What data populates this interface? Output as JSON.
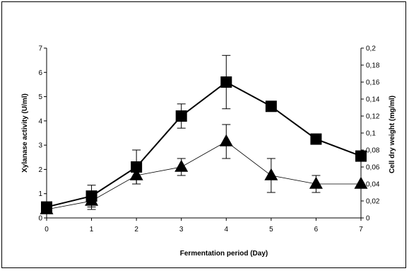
{
  "chart_data": {
    "type": "line",
    "title": "",
    "xlabel": "Fermentation period (Day)",
    "ylabel_left": "Xylanase activity (U/ml)",
    "ylabel_right": "Cell dry weight (mg/ml)",
    "x": [
      0,
      1,
      2,
      3,
      4,
      5,
      6,
      7
    ],
    "xlim": [
      0,
      7
    ],
    "ylim_left": [
      0,
      7
    ],
    "ylim_right": [
      0,
      0.2
    ],
    "x_ticks": [
      "0",
      "1",
      "2",
      "3",
      "4",
      "5",
      "6",
      "7"
    ],
    "y_left_ticks": [
      "0",
      "1",
      "2",
      "3",
      "4",
      "5",
      "6",
      "7"
    ],
    "y_right_ticks": [
      "0",
      "0,02",
      "0,04",
      "0,06",
      "0,08",
      "0,1",
      "0,12",
      "0,14",
      "0,16",
      "0,18",
      "0,2"
    ],
    "grid": false,
    "legend": "none",
    "series": [
      {
        "axis": "left",
        "marker": "square",
        "line": "thick",
        "color": "#000000",
        "values": [
          0.45,
          0.9,
          2.1,
          4.2,
          5.6,
          4.6,
          3.25,
          2.55
        ],
        "error": [
          0,
          0.45,
          0.7,
          0.5,
          1.1,
          0,
          0.2,
          0
        ]
      },
      {
        "axis": "right",
        "marker": "triangle",
        "line": "thin",
        "color": "#000000",
        "values": [
          0.01,
          0.02,
          0.05,
          0.06,
          0.09,
          0.05,
          0.04,
          0.04
        ],
        "error": [
          0,
          0.01,
          0.01,
          0.01,
          0.02,
          0.02,
          0.01,
          0
        ]
      }
    ]
  }
}
